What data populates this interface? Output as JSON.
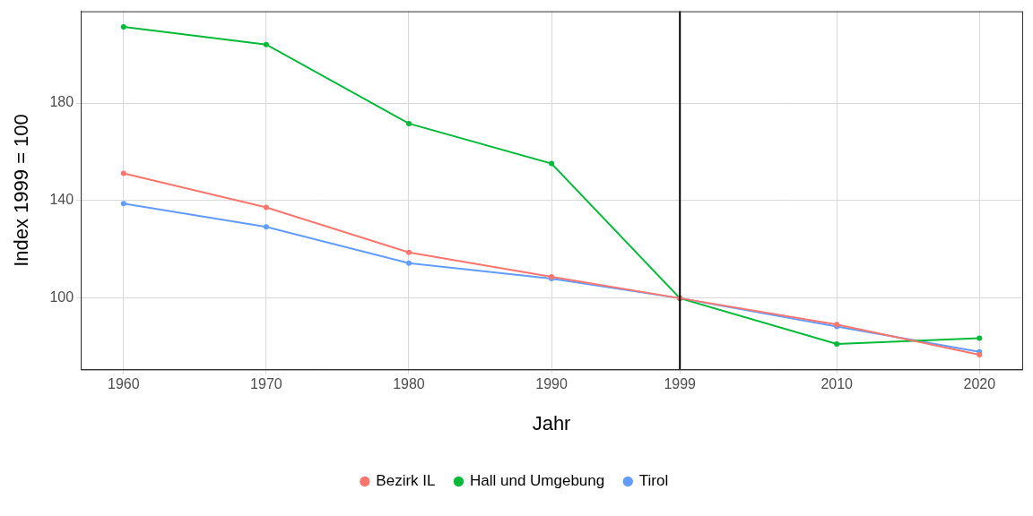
{
  "chart_data": {
    "type": "line",
    "x_label": "Jahr",
    "y_label": "Index 1999 = 100",
    "x": [
      1960,
      1970,
      1980,
      1990,
      1999,
      2010,
      2020
    ],
    "series": [
      {
        "name": "Bezirk IL",
        "color": "#F8766D",
        "values": [
          151.2,
          137.2,
          118.8,
          108.8,
          100,
          89.2,
          76.8
        ]
      },
      {
        "name": "Hall und Umgebung",
        "color": "#00BA38",
        "values": [
          211.2,
          204,
          171.6,
          155.2,
          100,
          81.2,
          83.6
        ]
      },
      {
        "name": "Tirol",
        "color": "#619CFF",
        "values": [
          138.8,
          129.2,
          114.4,
          108,
          100,
          88.4,
          78
        ]
      }
    ],
    "xlim": [
      1957,
      2023
    ],
    "xticks": [
      1960,
      1970,
      1980,
      1990,
      1999,
      2010,
      2020
    ],
    "ylim": [
      70.8,
      217.6
    ],
    "yticks": [
      100,
      140,
      180
    ],
    "reference_line_x": 1999,
    "grid": true,
    "legend": "bottom",
    "marker": "circle"
  }
}
